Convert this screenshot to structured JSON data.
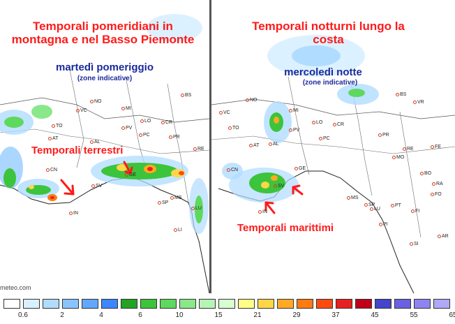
{
  "left_panel": {
    "title": "Temporali pomeridiani in montagna e nel Basso Piemonte",
    "subtitle": "martedì pomeriggio",
    "note": "(zone indicative)",
    "annotation": "Temporali terrestri",
    "credit": "meteo.com",
    "cities": [
      "BS",
      "NO",
      "VC",
      "MI",
      "TO",
      "AT",
      "PV",
      "LO",
      "CR",
      "PC",
      "AL",
      "PR",
      "RE",
      "CN",
      "GE",
      "SV",
      "IN",
      "SP",
      "MS",
      "LU",
      "LI"
    ]
  },
  "right_panel": {
    "title": "Temporali notturni lungo la costa",
    "subtitle": "mercoledì notte",
    "note": "(zone indicative)",
    "annotation": "Temporali marittimi",
    "cities": [
      "BS",
      "VR",
      "NO",
      "MI",
      "VC",
      "LO",
      "TO",
      "AT",
      "AL",
      "PV",
      "CR",
      "PC",
      "PR",
      "RE",
      "MO",
      "FE",
      "CN",
      "GE",
      "BO",
      "SV",
      "IN",
      "MS",
      "SP",
      "LU",
      "FI",
      "PT",
      "PI",
      "RA",
      "FO",
      "SI",
      "AR"
    ]
  },
  "colorbar": {
    "colors": [
      "#ffffff",
      "#d8f0ff",
      "#b0dcff",
      "#88c4ff",
      "#62a8ff",
      "#3c86ff",
      "#23a323",
      "#3cc43c",
      "#5ed85e",
      "#8ae88a",
      "#b4f4b4",
      "#d8ffd0",
      "#ffff88",
      "#ffd648",
      "#ffaa22",
      "#ff7a10",
      "#ff4a10",
      "#e82020",
      "#c00018",
      "#4444cc",
      "#6a60e0",
      "#8e84f0",
      "#b0a8f8"
    ],
    "ticks": [
      "0.6",
      "2",
      "4",
      "6",
      "10",
      "15",
      "21",
      "29",
      "37",
      "45",
      "55",
      "65"
    ]
  }
}
